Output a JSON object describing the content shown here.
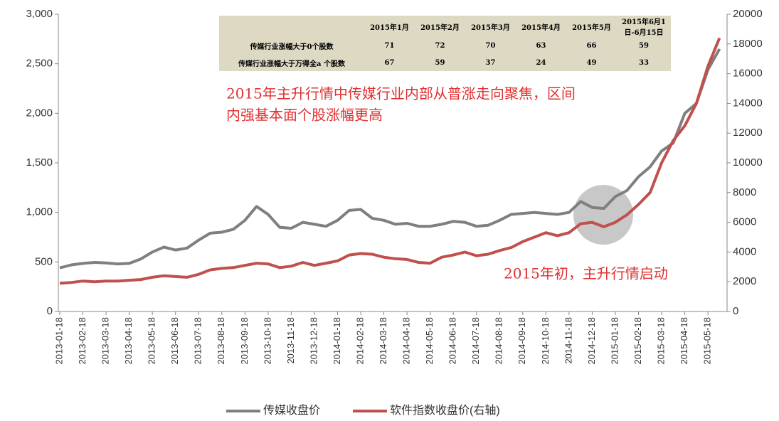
{
  "chart_data": {
    "type": "line",
    "categories": [
      "2013-01-18",
      null,
      "2013-02-18",
      null,
      "2013-03-18",
      null,
      "2013-04-18",
      null,
      "2013-05-18",
      null,
      "2013-06-18",
      null,
      "2013-07-18",
      null,
      "2013-08-18",
      null,
      "2013-09-18",
      null,
      "2013-10-18",
      null,
      "2013-11-18",
      null,
      "2013-12-18",
      null,
      "2014-01-18",
      null,
      "2014-02-18",
      null,
      "2014-03-18",
      null,
      "2014-04-18",
      null,
      "2014-05-18",
      null,
      "2014-06-18",
      null,
      "2014-07-18",
      null,
      "2014-08-18",
      null,
      "2014-09-18",
      null,
      "2014-10-18",
      null,
      "2014-11-18",
      null,
      "2014-12-18",
      null,
      "2015-01-18",
      null,
      "2015-02-18",
      null,
      "2015-03-18",
      null,
      "2015-04-18",
      null,
      "2015-05-18",
      null
    ],
    "series": [
      {
        "name": "传媒收盘价",
        "color": "#7f7f7f",
        "axis": "y",
        "values": [
          440,
          470,
          485,
          495,
          490,
          480,
          485,
          530,
          600,
          650,
          620,
          640,
          720,
          790,
          800,
          830,
          920,
          1060,
          980,
          850,
          840,
          900,
          880,
          860,
          920,
          1020,
          1030,
          940,
          920,
          880,
          890,
          860,
          860,
          880,
          910,
          900,
          860,
          870,
          920,
          980,
          990,
          1000,
          990,
          980,
          1000,
          1110,
          1050,
          1040,
          1160,
          1220,
          1360,
          1460,
          1620,
          1700,
          2000,
          2100,
          2440,
          2650
        ]
      },
      {
        "name": "软件指数收盘价(右轴)",
        "color": "#c0504d",
        "axis": "y2",
        "values": [
          1900,
          1950,
          2050,
          2000,
          2050,
          2050,
          2100,
          2150,
          2300,
          2400,
          2350,
          2300,
          2500,
          2800,
          2900,
          2950,
          3100,
          3250,
          3200,
          2950,
          3050,
          3300,
          3100,
          3250,
          3400,
          3800,
          3900,
          3850,
          3650,
          3550,
          3500,
          3300,
          3250,
          3650,
          3800,
          4000,
          3750,
          3850,
          4100,
          4300,
          4700,
          5000,
          5300,
          5100,
          5300,
          5900,
          6000,
          5700,
          6000,
          6500,
          7200,
          8000,
          10000,
          11500,
          12500,
          14000,
          16500,
          18400
        ]
      }
    ],
    "ylim": [
      0,
      3000
    ],
    "yticks": [
      0,
      500,
      {
        "value": 1000,
        "label": "1,000"
      },
      {
        "value": 1500,
        "label": "1,500"
      },
      {
        "value": 2000,
        "label": "2,000"
      },
      {
        "value": 2500,
        "label": "2,500"
      },
      {
        "value": 3000,
        "label": "3,000"
      }
    ],
    "y2lim": [
      0,
      20000
    ],
    "y2ticks": [
      0,
      2000,
      4000,
      6000,
      8000,
      10000,
      12000,
      14000,
      16000,
      18000,
      20000
    ],
    "annotations": [
      {
        "text": "2015年主升行情中传媒行业内部从普涨走向聚焦，区间"
      },
      {
        "text": "内强基本面个股涨幅更高"
      },
      {
        "text": "2015年初，主升行情启动"
      }
    ],
    "table": {
      "columns": [
        "2015年1月",
        "2015年2月",
        "2015年3月",
        "2015年4月",
        "2015年5月",
        "2015年6月1日-6月15日"
      ],
      "rows": [
        {
          "label": "传媒行业涨幅大于0个股数",
          "values": [
            71,
            72,
            70,
            63,
            66,
            59
          ]
        },
        {
          "label": "传媒行业涨幅大于万得全a 个股数",
          "values": [
            67,
            59,
            37,
            24,
            49,
            33
          ]
        }
      ]
    }
  }
}
